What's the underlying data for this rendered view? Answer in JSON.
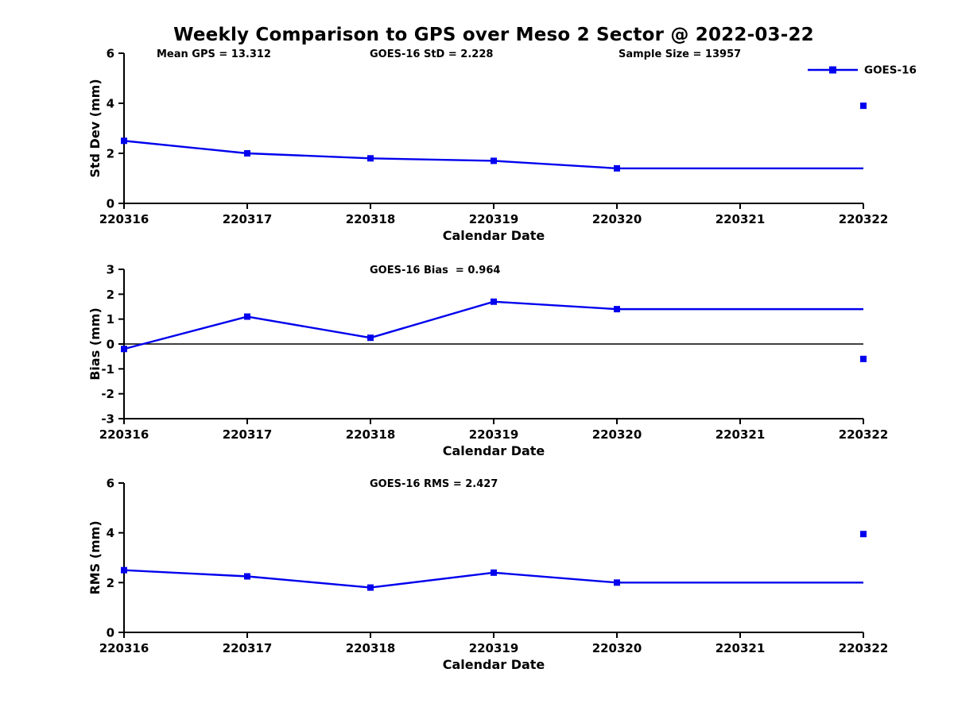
{
  "figure": {
    "title": "Weekly Comparison to GPS over Meso 2 Sector @ 2022-03-22",
    "colors": {
      "series": "#0000EE",
      "axis": "#000000",
      "text": "#000000",
      "background": "#FFFFFF"
    }
  },
  "chart_data": [
    {
      "type": "line",
      "id": "std-dev",
      "ylabel": "Std Dev (mm)",
      "xlabel": "Calendar Date",
      "ylim": [
        0,
        6
      ],
      "yticks": [
        0,
        2,
        4,
        6
      ],
      "xticks": [
        "220316",
        "220317",
        "220318",
        "220319",
        "220320",
        "220321",
        "220322"
      ],
      "grid": false,
      "annotations": [
        {
          "text": "Mean GPS = 13.312",
          "pos": "left"
        },
        {
          "text": "GOES-16 StD = 2.228",
          "pos": "center"
        },
        {
          "text": "Sample Size = 13957",
          "pos": "right"
        }
      ],
      "legend": {
        "label": "GOES-16",
        "position": "top-right"
      },
      "series": [
        {
          "name": "GOES-16",
          "x": [
            220316,
            220317,
            220318,
            220319,
            220320,
            220322
          ],
          "y": [
            2.5,
            2.0,
            1.8,
            1.7,
            1.4,
            1.4
          ],
          "marker": "square",
          "marker_on_last": false
        }
      ],
      "isolated_points": [
        {
          "x": 220322,
          "y": 3.9
        }
      ],
      "zero_line": false
    },
    {
      "type": "line",
      "id": "bias",
      "ylabel": "Bias (mm)",
      "xlabel": "Calendar Date",
      "ylim": [
        -3,
        3
      ],
      "yticks": [
        -3,
        -2,
        -1,
        0,
        1,
        2,
        3
      ],
      "xticks": [
        "220316",
        "220317",
        "220318",
        "220319",
        "220320",
        "220321",
        "220322"
      ],
      "grid": false,
      "annotations": [
        {
          "text": "GOES-16 Bias  = 0.964",
          "pos": "center"
        }
      ],
      "legend": null,
      "series": [
        {
          "name": "GOES-16",
          "x": [
            220316,
            220317,
            220318,
            220319,
            220320,
            220322
          ],
          "y": [
            -0.2,
            1.1,
            0.25,
            1.7,
            1.4,
            1.4
          ],
          "marker": "square",
          "marker_on_last": false
        }
      ],
      "isolated_points": [
        {
          "x": 220322,
          "y": -0.6
        }
      ],
      "zero_line": true
    },
    {
      "type": "line",
      "id": "rms",
      "ylabel": "RMS (mm)",
      "xlabel": "Calendar Date",
      "ylim": [
        0,
        6
      ],
      "yticks": [
        0,
        2,
        4,
        6
      ],
      "xticks": [
        "220316",
        "220317",
        "220318",
        "220319",
        "220320",
        "220321",
        "220322"
      ],
      "grid": false,
      "annotations": [
        {
          "text": "GOES-16 RMS = 2.427",
          "pos": "center"
        }
      ],
      "legend": null,
      "series": [
        {
          "name": "GOES-16",
          "x": [
            220316,
            220317,
            220318,
            220319,
            220320,
            220322
          ],
          "y": [
            2.5,
            2.25,
            1.8,
            2.4,
            2.0,
            2.0
          ],
          "marker": "square",
          "marker_on_last": false
        }
      ],
      "isolated_points": [
        {
          "x": 220322,
          "y": 3.95
        }
      ],
      "zero_line": false
    }
  ]
}
